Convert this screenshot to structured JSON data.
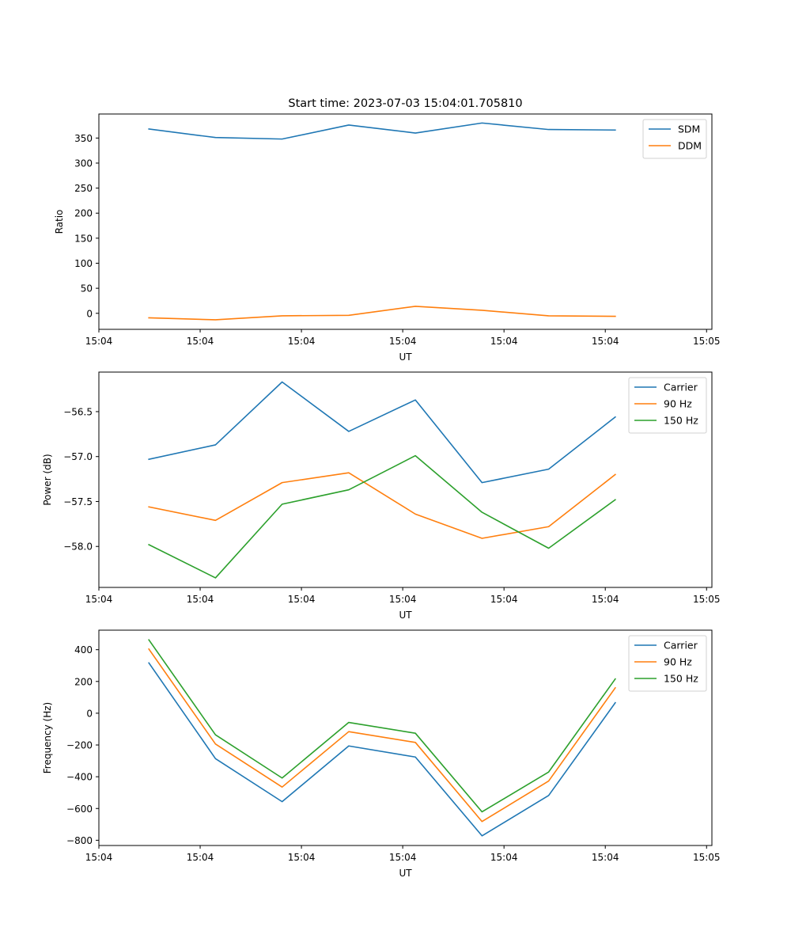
{
  "figure": {
    "title": "Start time: 2023-07-03 15:04:01.705810"
  },
  "chart_data": [
    {
      "type": "line",
      "title": "Start time: 2023-07-03 15:04:01.705810",
      "xlabel": "UT",
      "ylabel": "Ratio",
      "x": [
        0,
        1,
        2,
        3,
        4,
        5,
        6,
        7
      ],
      "xlim": [
        -0.75,
        8.45
      ],
      "xticks": [
        {
          "value": -0.75,
          "label": "15:04"
        },
        {
          "value": 0.77,
          "label": "15:04"
        },
        {
          "value": 2.29,
          "label": "15:04"
        },
        {
          "value": 3.81,
          "label": "15:04"
        },
        {
          "value": 5.33,
          "label": "15:04"
        },
        {
          "value": 6.85,
          "label": "15:04"
        },
        {
          "value": 8.37,
          "label": "15:05"
        }
      ],
      "ylim": [
        -32,
        398
      ],
      "yticks": [
        {
          "value": 0,
          "label": "0"
        },
        {
          "value": 50,
          "label": "50"
        },
        {
          "value": 100,
          "label": "100"
        },
        {
          "value": 150,
          "label": "150"
        },
        {
          "value": 200,
          "label": "200"
        },
        {
          "value": 250,
          "label": "250"
        },
        {
          "value": 300,
          "label": "300"
        },
        {
          "value": 350,
          "label": "350"
        }
      ],
      "legend_position": "top-right",
      "series": [
        {
          "name": "SDM",
          "color": "#1f77b4",
          "values": [
            368,
            351,
            348,
            376,
            360,
            380,
            367,
            366
          ]
        },
        {
          "name": "DDM",
          "color": "#ff7f0e",
          "values": [
            -9,
            -13,
            -5,
            -4,
            14,
            6,
            -5,
            -6
          ]
        }
      ]
    },
    {
      "type": "line",
      "title": "",
      "xlabel": "UT",
      "ylabel": "Power (dB)",
      "x": [
        0,
        1,
        2,
        3,
        4,
        5,
        6,
        7
      ],
      "xlim": [
        -0.75,
        8.45
      ],
      "xticks": [
        {
          "value": -0.75,
          "label": "15:04"
        },
        {
          "value": 0.77,
          "label": "15:04"
        },
        {
          "value": 2.29,
          "label": "15:04"
        },
        {
          "value": 3.81,
          "label": "15:04"
        },
        {
          "value": 5.33,
          "label": "15:04"
        },
        {
          "value": 6.85,
          "label": "15:04"
        },
        {
          "value": 8.37,
          "label": "15:05"
        }
      ],
      "ylim": [
        -58.456,
        -56.06
      ],
      "yticks": [
        {
          "value": -58.0,
          "label": "−58.0"
        },
        {
          "value": -57.5,
          "label": "−57.5"
        },
        {
          "value": -57.0,
          "label": "−57.0"
        },
        {
          "value": -56.5,
          "label": "−56.5"
        }
      ],
      "legend_position": "top-right",
      "series": [
        {
          "name": "Carrier",
          "color": "#1f77b4",
          "values": [
            -57.03,
            -56.87,
            -56.17,
            -56.72,
            -56.37,
            -57.29,
            -57.14,
            -56.56
          ]
        },
        {
          "name": "90 Hz",
          "color": "#ff7f0e",
          "values": [
            -57.56,
            -57.71,
            -57.29,
            -57.18,
            -57.64,
            -57.91,
            -57.78,
            -57.2
          ]
        },
        {
          "name": "150 Hz",
          "color": "#2ca02c",
          "values": [
            -57.98,
            -58.35,
            -57.53,
            -57.37,
            -56.99,
            -57.62,
            -58.02,
            -57.48
          ]
        }
      ]
    },
    {
      "type": "line",
      "title": "",
      "xlabel": "UT",
      "ylabel": "Frequency (Hz)",
      "x": [
        0,
        1,
        2,
        3,
        4,
        5,
        6,
        7
      ],
      "xlim": [
        -0.75,
        8.45
      ],
      "xticks": [
        {
          "value": -0.75,
          "label": "15:04"
        },
        {
          "value": 0.77,
          "label": "15:04"
        },
        {
          "value": 2.29,
          "label": "15:04"
        },
        {
          "value": 3.81,
          "label": "15:04"
        },
        {
          "value": 5.33,
          "label": "15:04"
        },
        {
          "value": 6.85,
          "label": "15:04"
        },
        {
          "value": 8.37,
          "label": "15:05"
        }
      ],
      "ylim": [
        -833,
        523
      ],
      "yticks": [
        {
          "value": -800,
          "label": "−800"
        },
        {
          "value": -600,
          "label": "−600"
        },
        {
          "value": -400,
          "label": "−400"
        },
        {
          "value": -200,
          "label": "−200"
        },
        {
          "value": 0,
          "label": "0"
        },
        {
          "value": 200,
          "label": "200"
        },
        {
          "value": 400,
          "label": "400"
        }
      ],
      "legend_position": "top-right",
      "series": [
        {
          "name": "Carrier",
          "color": "#1f77b4",
          "values": [
            317,
            -286,
            -557,
            -206,
            -276,
            -772,
            -518,
            66
          ]
        },
        {
          "name": "90 Hz",
          "color": "#ff7f0e",
          "values": [
            404,
            -194,
            -465,
            -116,
            -184,
            -682,
            -427,
            160
          ]
        },
        {
          "name": "150 Hz",
          "color": "#2ca02c",
          "values": [
            462,
            -136,
            -408,
            -58,
            -126,
            -621,
            -370,
            216
          ]
        }
      ]
    }
  ]
}
